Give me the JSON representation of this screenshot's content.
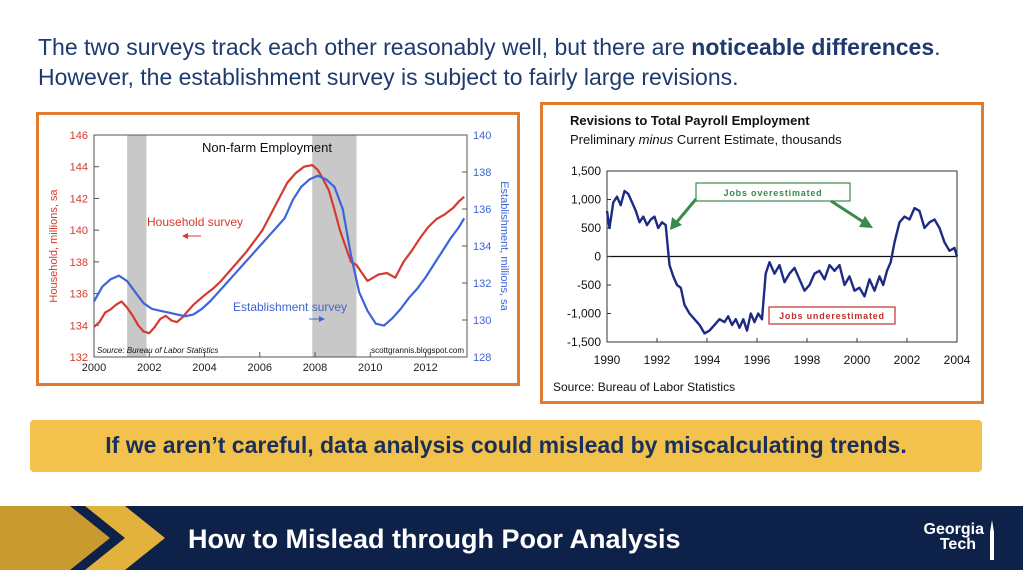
{
  "intro": {
    "part1": "The two surveys track each other reasonably well, but there are ",
    "bold": "noticeable differences",
    "part2": ". However, the establishment survey is subject to fairly large revisions."
  },
  "callout": "If we aren’t careful, data analysis could mislead by miscalculating trends.",
  "footer": {
    "title": "How to Mislead through Poor Analysis",
    "logo_line1": "Georgia",
    "logo_line2": "Tech"
  },
  "colors": {
    "accent_orange": "#e27b2d",
    "navy": "#0e2249",
    "gold": "#f3c24d",
    "household_red": "#d6392f",
    "establishment_blue": "#3d64d8",
    "revisions_navy": "#1d2b84"
  },
  "chart_data": [
    {
      "type": "line",
      "title": "Non-farm Employment",
      "source": "Source: Bureau of Labor Statistics",
      "credit": "scottgrannis.blogspot.com",
      "ylabel_left": "Household, millions, sa",
      "ylabel_right": "Establishment, millions, sa",
      "xlim": [
        2000,
        2013.5
      ],
      "ylim_left": [
        132,
        146
      ],
      "ylim_right": [
        128,
        140
      ],
      "xticks": [
        2000,
        2002,
        2004,
        2006,
        2008,
        2010,
        2012
      ],
      "yticks_left": [
        132,
        134,
        136,
        138,
        140,
        142,
        144,
        146
      ],
      "yticks_right": [
        128,
        130,
        132,
        134,
        136,
        138,
        140
      ],
      "recessions": [
        [
          2001.2,
          2001.9
        ],
        [
          2007.9,
          2009.5
        ]
      ],
      "annotations": [
        "Household survey",
        "Establishment survey"
      ],
      "series": [
        {
          "name": "Household survey",
          "axis": "left",
          "color": "#d6392f",
          "x": [
            2000.0,
            2000.2,
            2000.4,
            2000.6,
            2000.8,
            2001.0,
            2001.2,
            2001.4,
            2001.6,
            2001.8,
            2002.0,
            2002.2,
            2002.4,
            2002.6,
            2002.8,
            2003.0,
            2003.2,
            2003.4,
            2003.6,
            2003.8,
            2004.0,
            2004.3,
            2004.6,
            2004.9,
            2005.2,
            2005.5,
            2005.8,
            2006.1,
            2006.4,
            2006.7,
            2007.0,
            2007.3,
            2007.6,
            2007.9,
            2008.1,
            2008.3,
            2008.5,
            2008.7,
            2008.9,
            2009.1,
            2009.3,
            2009.5,
            2009.7,
            2009.9,
            2010.1,
            2010.3,
            2010.6,
            2010.9,
            2011.2,
            2011.5,
            2011.8,
            2012.1,
            2012.4,
            2012.7,
            2013.0,
            2013.2,
            2013.4
          ],
          "y": [
            133.9,
            134.2,
            134.8,
            135.0,
            135.3,
            135.5,
            135.1,
            134.6,
            134.0,
            133.6,
            133.5,
            133.9,
            134.4,
            134.6,
            134.3,
            134.2,
            134.5,
            134.9,
            135.3,
            135.6,
            135.9,
            136.3,
            136.8,
            137.4,
            138.0,
            138.6,
            139.3,
            140.0,
            141.0,
            142.0,
            143.0,
            143.6,
            144.0,
            144.1,
            143.8,
            143.2,
            142.5,
            141.3,
            140.0,
            139.0,
            138.0,
            137.8,
            137.3,
            136.8,
            137.0,
            137.2,
            137.3,
            137.0,
            138.0,
            138.7,
            139.5,
            140.2,
            140.7,
            141.0,
            141.4,
            141.8,
            142.1
          ]
        },
        {
          "name": "Establishment survey",
          "axis": "right",
          "color": "#3d64d8",
          "x": [
            2000.0,
            2000.3,
            2000.6,
            2000.9,
            2001.2,
            2001.5,
            2001.8,
            2002.1,
            2002.4,
            2002.7,
            2003.0,
            2003.3,
            2003.6,
            2003.9,
            2004.2,
            2004.5,
            2004.8,
            2005.1,
            2005.4,
            2005.7,
            2006.0,
            2006.3,
            2006.6,
            2006.9,
            2007.2,
            2007.5,
            2007.8,
            2008.1,
            2008.4,
            2008.7,
            2009.0,
            2009.3,
            2009.6,
            2009.9,
            2010.2,
            2010.5,
            2010.8,
            2011.1,
            2011.4,
            2011.7,
            2012.0,
            2012.3,
            2012.6,
            2012.9,
            2013.2,
            2013.4
          ],
          "y": [
            131.0,
            131.8,
            132.2,
            132.4,
            132.1,
            131.5,
            130.9,
            130.6,
            130.5,
            130.4,
            130.3,
            130.2,
            130.3,
            130.6,
            131.0,
            131.5,
            132.0,
            132.5,
            133.0,
            133.5,
            134.0,
            134.5,
            135.0,
            135.5,
            136.5,
            137.2,
            137.6,
            137.8,
            137.6,
            137.2,
            136.0,
            133.5,
            131.5,
            130.5,
            129.8,
            129.7,
            130.1,
            130.6,
            131.2,
            131.7,
            132.3,
            133.0,
            133.7,
            134.4,
            135.0,
            135.5
          ]
        }
      ]
    },
    {
      "type": "line",
      "title": "Revisions to Total Payroll Employment",
      "subtitle_part1": "Preliminary ",
      "subtitle_italic": "minus",
      "subtitle_part2": "  Current Estimate, thousands",
      "source": "Source: Bureau of Labor Statistics",
      "xlim": [
        1990,
        2004
      ],
      "ylim": [
        -1500,
        1500
      ],
      "xticks": [
        1990,
        1992,
        1994,
        1996,
        1998,
        2000,
        2002,
        2004
      ],
      "yticks": [
        1500,
        1000,
        500,
        0,
        -500,
        -1000,
        -1500
      ],
      "ytick_labels": [
        "1,500",
        "1,000",
        "500",
        "0",
        "-500",
        "-1,000",
        "-1,500"
      ],
      "annotations": [
        "Jobs overestimated",
        "Jobs underestimated"
      ],
      "series": [
        {
          "color": "#1d2b84",
          "x": [
            1990.0,
            1990.1,
            1990.25,
            1990.4,
            1990.55,
            1990.7,
            1990.85,
            1991.0,
            1991.15,
            1991.3,
            1991.45,
            1991.6,
            1991.75,
            1991.9,
            1992.05,
            1992.2,
            1992.35,
            1992.5,
            1992.65,
            1992.8,
            1992.95,
            1993.1,
            1993.3,
            1993.5,
            1993.7,
            1993.9,
            1994.1,
            1994.3,
            1994.5,
            1994.7,
            1994.85,
            1995.0,
            1995.15,
            1995.3,
            1995.45,
            1995.6,
            1995.75,
            1995.9,
            1996.05,
            1996.2,
            1996.35,
            1996.5,
            1996.7,
            1996.9,
            1997.1,
            1997.3,
            1997.5,
            1997.7,
            1997.9,
            1998.1,
            1998.3,
            1998.5,
            1998.7,
            1998.9,
            1999.1,
            1999.3,
            1999.5,
            1999.7,
            1999.9,
            2000.1,
            2000.3,
            2000.5,
            2000.7,
            2000.9,
            2001.05,
            2001.2,
            2001.35,
            2001.5,
            2001.7,
            2001.9,
            2002.1,
            2002.3,
            2002.5,
            2002.7,
            2002.9,
            2003.1,
            2003.3,
            2003.5,
            2003.7,
            2003.9,
            2004.0
          ],
          "y": [
            800,
            500,
            950,
            1050,
            900,
            1150,
            1100,
            950,
            800,
            600,
            700,
            550,
            650,
            700,
            500,
            600,
            550,
            -150,
            -350,
            -500,
            -550,
            -850,
            -1000,
            -1100,
            -1200,
            -1350,
            -1300,
            -1200,
            -1100,
            -1150,
            -1050,
            -1200,
            -1100,
            -1250,
            -1100,
            -1300,
            -1000,
            -1150,
            -1000,
            -1100,
            -300,
            -100,
            -300,
            -150,
            -450,
            -300,
            -200,
            -400,
            -600,
            -500,
            -300,
            -250,
            -400,
            -150,
            -250,
            -150,
            -500,
            -350,
            -600,
            -550,
            -700,
            -400,
            -600,
            -350,
            -500,
            -250,
            -100,
            250,
            600,
            700,
            650,
            850,
            800,
            500,
            600,
            650,
            500,
            250,
            100,
            150,
            0
          ]
        }
      ]
    }
  ]
}
